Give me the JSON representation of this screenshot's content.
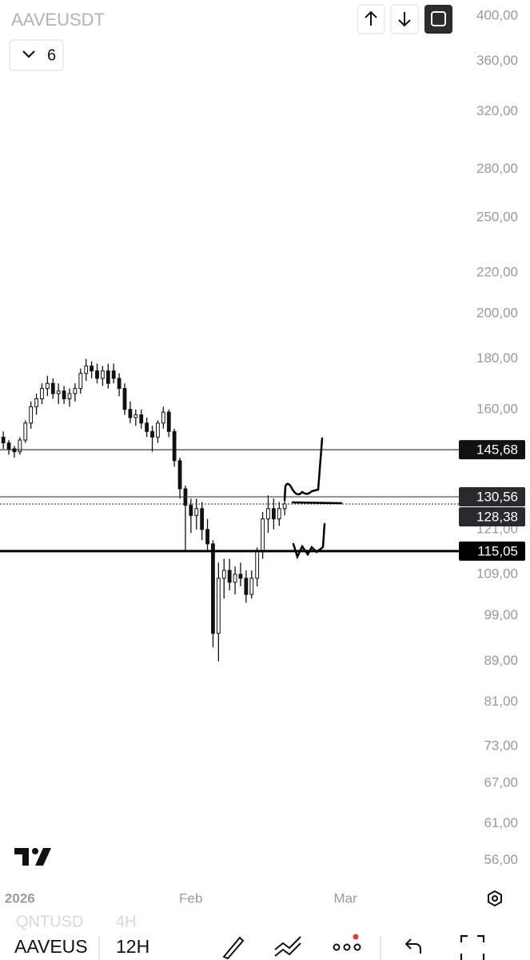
{
  "chart_data": {
    "type": "candlestick",
    "title": "AAVEUSDT",
    "interval_count": "6",
    "log_scale": true,
    "x": [
      -3,
      -2,
      -1,
      0,
      1,
      2,
      3,
      4,
      5,
      6,
      7,
      8,
      9,
      10,
      11,
      12,
      13,
      14,
      15,
      16,
      17,
      18,
      19,
      20,
      21,
      22,
      23,
      24,
      25,
      26,
      27,
      28,
      29,
      30,
      31,
      32,
      33,
      34,
      35,
      36,
      37,
      38,
      39,
      40,
      41,
      42,
      43,
      44,
      45,
      46,
      47,
      48
    ],
    "open": [
      150,
      148,
      146,
      145,
      149,
      155,
      161,
      164,
      168,
      170,
      166,
      167,
      164,
      166,
      168,
      174,
      177,
      175,
      172,
      175,
      175,
      172,
      168,
      160,
      157,
      158,
      155,
      152,
      150,
      155,
      159,
      152,
      142,
      133,
      128,
      125,
      127,
      121,
      117,
      95,
      108,
      110,
      107,
      109,
      108,
      104,
      108,
      115,
      124,
      127,
      124,
      127
    ],
    "high": [
      152,
      149,
      147,
      150,
      156,
      163,
      166,
      170,
      173,
      172,
      170,
      169,
      168,
      170,
      176,
      180,
      179,
      178,
      177,
      178,
      178,
      174,
      170,
      163,
      160,
      160,
      157,
      154,
      156,
      161,
      160,
      153,
      143,
      134,
      130,
      130,
      129,
      124,
      118,
      112,
      113,
      113,
      111,
      112,
      110,
      110,
      116,
      126,
      131,
      130,
      129,
      131
    ],
    "low": [
      146,
      144,
      143,
      144,
      148,
      153,
      158,
      162,
      165,
      164,
      162,
      162,
      161,
      163,
      166,
      171,
      172,
      170,
      169,
      168,
      170,
      165,
      158,
      155,
      154,
      153,
      150,
      145,
      148,
      153,
      150,
      140,
      130,
      115,
      120,
      121,
      118,
      115,
      92,
      89,
      103,
      105,
      104,
      106,
      102,
      103,
      106,
      113,
      120,
      121,
      122,
      125
    ],
    "close": [
      148,
      146,
      145,
      149,
      155,
      161,
      164,
      168,
      170,
      166,
      167,
      164,
      166,
      168,
      174,
      177,
      175,
      172,
      175,
      170,
      172,
      168,
      160,
      157,
      158,
      155,
      152,
      150,
      155,
      159,
      152,
      142,
      133,
      128,
      125,
      127,
      121,
      117,
      95,
      108,
      110,
      107,
      109,
      108,
      104,
      108,
      115,
      124,
      127,
      124,
      127,
      128.38
    ],
    "xlim": [
      -3.6,
      79.7
    ],
    "xticks": [
      {
        "value": 0,
        "label": "2026"
      },
      {
        "value": 31,
        "label": "Feb"
      },
      {
        "value": 59,
        "label": "Mar"
      }
    ],
    "ylim": [
      53.5,
      415
    ],
    "yticks": [
      {
        "value": 400,
        "label": "400,00"
      },
      {
        "value": 360,
        "label": "360,00"
      },
      {
        "value": 320,
        "label": "320,00"
      },
      {
        "value": 280,
        "label": "280,00"
      },
      {
        "value": 250,
        "label": "250,00"
      },
      {
        "value": 220,
        "label": "220,00"
      },
      {
        "value": 200,
        "label": "200,00"
      },
      {
        "value": 180,
        "label": "180,00"
      },
      {
        "value": 160,
        "label": "160,00"
      },
      {
        "value": 121,
        "label": "121,00"
      },
      {
        "value": 109,
        "label": "109,00"
      },
      {
        "value": 99,
        "label": "99,00"
      },
      {
        "value": 89,
        "label": "89,00"
      },
      {
        "value": 81,
        "label": "81,00"
      },
      {
        "value": 73,
        "label": "73,00"
      },
      {
        "value": 67,
        "label": "67,00"
      },
      {
        "value": 61,
        "label": "61,00"
      },
      {
        "value": 56,
        "label": "56,00"
      }
    ],
    "price_lines": [
      {
        "value": 145.68,
        "label": "145,68",
        "color": "#111111"
      },
      {
        "value": 130.56,
        "label": "130,56",
        "color": "#2a2a2e"
      },
      {
        "value": 128.38,
        "label": "128,38",
        "color": "#2a2a2e"
      },
      {
        "value": 115.05,
        "label": "115,05",
        "color": "#000000"
      }
    ],
    "color": "#111111"
  },
  "ui": {
    "prev_symbol": "QNTUSD",
    "prev_interval": "4H",
    "symbol": "AAVEUS",
    "interval": "12H"
  }
}
